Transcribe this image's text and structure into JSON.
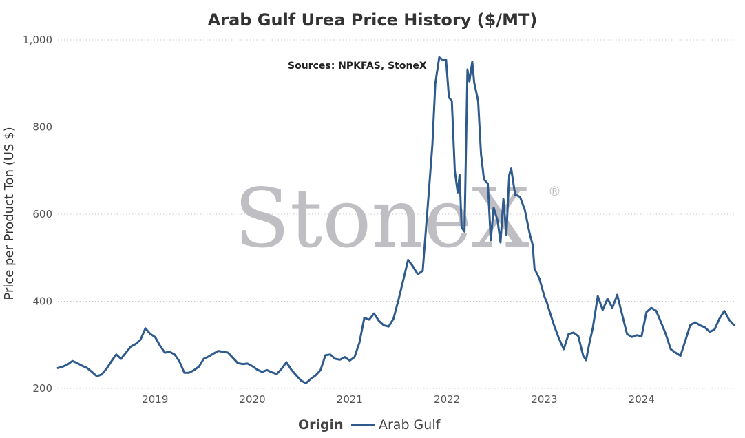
{
  "chart_data": {
    "type": "line",
    "title": "Arab Gulf Urea Price History ($/MT)",
    "annotation": "Sources: NPKFAS, StoneX",
    "watermark": "StoneX",
    "watermark_mark": "®",
    "ylabel": "Price per Product Ton (US $)",
    "xlabel": "",
    "ylim": [
      200,
      1000
    ],
    "yticks": [
      200,
      400,
      600,
      800,
      1000
    ],
    "ytick_labels": [
      "200",
      "400",
      "600",
      "800",
      "1,000"
    ],
    "xlim": [
      2018.0,
      2024.95
    ],
    "xticks": [
      2019,
      2020,
      2021,
      2022,
      2023,
      2024
    ],
    "xtick_labels": [
      "2019",
      "2020",
      "2021",
      "2022",
      "2023",
      "2024"
    ],
    "grid": "horizontal dotted",
    "legend": {
      "title": "Origin",
      "position": "bottom-center"
    },
    "series": [
      {
        "name": "Arab Gulf",
        "color": "#2e5a8e",
        "points": [
          [
            2018.0,
            247
          ],
          [
            2018.05,
            250
          ],
          [
            2018.1,
            255
          ],
          [
            2018.15,
            263
          ],
          [
            2018.2,
            258
          ],
          [
            2018.25,
            252
          ],
          [
            2018.3,
            247
          ],
          [
            2018.35,
            238
          ],
          [
            2018.4,
            228
          ],
          [
            2018.45,
            232
          ],
          [
            2018.5,
            245
          ],
          [
            2018.55,
            262
          ],
          [
            2018.6,
            278
          ],
          [
            2018.65,
            268
          ],
          [
            2018.7,
            282
          ],
          [
            2018.75,
            296
          ],
          [
            2018.8,
            302
          ],
          [
            2018.85,
            312
          ],
          [
            2018.9,
            338
          ],
          [
            2018.95,
            325
          ],
          [
            2019.0,
            318
          ],
          [
            2019.05,
            298
          ],
          [
            2019.1,
            282
          ],
          [
            2019.15,
            284
          ],
          [
            2019.2,
            278
          ],
          [
            2019.25,
            262
          ],
          [
            2019.3,
            236
          ],
          [
            2019.35,
            236
          ],
          [
            2019.4,
            242
          ],
          [
            2019.45,
            250
          ],
          [
            2019.5,
            268
          ],
          [
            2019.55,
            273
          ],
          [
            2019.6,
            280
          ],
          [
            2019.65,
            286
          ],
          [
            2019.7,
            284
          ],
          [
            2019.75,
            282
          ],
          [
            2019.8,
            270
          ],
          [
            2019.85,
            258
          ],
          [
            2019.9,
            256
          ],
          [
            2019.95,
            257
          ],
          [
            2020.0,
            251
          ],
          [
            2020.05,
            243
          ],
          [
            2020.1,
            238
          ],
          [
            2020.15,
            242
          ],
          [
            2020.2,
            237
          ],
          [
            2020.25,
            233
          ],
          [
            2020.3,
            245
          ],
          [
            2020.35,
            260
          ],
          [
            2020.4,
            243
          ],
          [
            2020.45,
            230
          ],
          [
            2020.5,
            218
          ],
          [
            2020.55,
            212
          ],
          [
            2020.6,
            222
          ],
          [
            2020.65,
            230
          ],
          [
            2020.7,
            242
          ],
          [
            2020.75,
            276
          ],
          [
            2020.8,
            278
          ],
          [
            2020.85,
            268
          ],
          [
            2020.9,
            266
          ],
          [
            2020.95,
            272
          ],
          [
            2021.0,
            264
          ],
          [
            2021.05,
            272
          ],
          [
            2021.1,
            305
          ],
          [
            2021.15,
            362
          ],
          [
            2021.2,
            358
          ],
          [
            2021.25,
            372
          ],
          [
            2021.3,
            355
          ],
          [
            2021.35,
            345
          ],
          [
            2021.4,
            342
          ],
          [
            2021.45,
            360
          ],
          [
            2021.5,
            402
          ],
          [
            2021.55,
            448
          ],
          [
            2021.6,
            495
          ],
          [
            2021.65,
            480
          ],
          [
            2021.7,
            462
          ],
          [
            2021.75,
            470
          ],
          [
            2021.8,
            612
          ],
          [
            2021.85,
            760
          ],
          [
            2021.88,
            900
          ],
          [
            2021.92,
            960
          ],
          [
            2021.95,
            955
          ],
          [
            2021.99,
            955
          ],
          [
            2022.02,
            868
          ],
          [
            2022.05,
            860
          ],
          [
            2022.08,
            700
          ],
          [
            2022.11,
            650
          ],
          [
            2022.13,
            690
          ],
          [
            2022.15,
            570
          ],
          [
            2022.18,
            560
          ],
          [
            2022.21,
            932
          ],
          [
            2022.23,
            905
          ],
          [
            2022.26,
            950
          ],
          [
            2022.28,
            902
          ],
          [
            2022.32,
            860
          ],
          [
            2022.35,
            738
          ],
          [
            2022.38,
            680
          ],
          [
            2022.42,
            670
          ],
          [
            2022.45,
            540
          ],
          [
            2022.48,
            615
          ],
          [
            2022.52,
            585
          ],
          [
            2022.55,
            535
          ],
          [
            2022.58,
            635
          ],
          [
            2022.61,
            553
          ],
          [
            2022.64,
            690
          ],
          [
            2022.66,
            705
          ],
          [
            2022.7,
            645
          ],
          [
            2022.75,
            640
          ],
          [
            2022.8,
            610
          ],
          [
            2022.85,
            555
          ],
          [
            2022.88,
            530
          ],
          [
            2022.9,
            475
          ],
          [
            2022.95,
            452
          ],
          [
            2023.0,
            412
          ],
          [
            2023.03,
            395
          ],
          [
            2023.05,
            380
          ],
          [
            2023.1,
            345
          ],
          [
            2023.15,
            315
          ],
          [
            2023.2,
            290
          ],
          [
            2023.25,
            325
          ],
          [
            2023.3,
            328
          ],
          [
            2023.35,
            320
          ],
          [
            2023.4,
            275
          ],
          [
            2023.43,
            265
          ],
          [
            2023.46,
            300
          ],
          [
            2023.5,
            340
          ],
          [
            2023.55,
            412
          ],
          [
            2023.6,
            380
          ],
          [
            2023.65,
            406
          ],
          [
            2023.7,
            385
          ],
          [
            2023.75,
            415
          ],
          [
            2023.8,
            370
          ],
          [
            2023.85,
            325
          ],
          [
            2023.9,
            318
          ],
          [
            2023.95,
            322
          ],
          [
            2024.0,
            320
          ],
          [
            2024.05,
            375
          ],
          [
            2024.1,
            385
          ],
          [
            2024.15,
            378
          ],
          [
            2024.2,
            352
          ],
          [
            2024.25,
            324
          ],
          [
            2024.3,
            290
          ],
          [
            2024.35,
            282
          ],
          [
            2024.4,
            275
          ],
          [
            2024.45,
            310
          ],
          [
            2024.5,
            345
          ],
          [
            2024.55,
            352
          ],
          [
            2024.6,
            345
          ],
          [
            2024.65,
            340
          ],
          [
            2024.7,
            330
          ],
          [
            2024.75,
            335
          ],
          [
            2024.8,
            360
          ],
          [
            2024.85,
            378
          ],
          [
            2024.9,
            358
          ],
          [
            2024.95,
            345
          ]
        ]
      }
    ]
  }
}
